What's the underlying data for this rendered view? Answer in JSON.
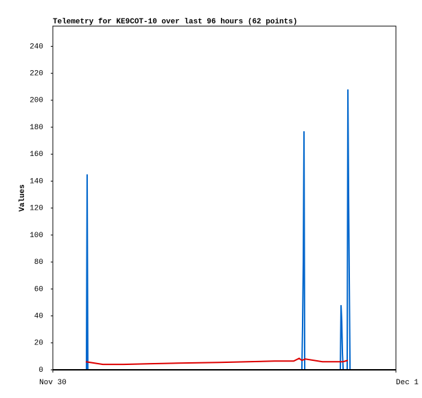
{
  "chart_data": {
    "type": "line",
    "title": "Telemetry for KE9COT-10 over last 96 hours (62 points)",
    "y_label": "Values",
    "xlim": [
      0,
      24
    ],
    "xticks": [
      {
        "value": 0,
        "label": "Nov 30"
      },
      {
        "value": 24,
        "label": "Dec 1"
      }
    ],
    "ylim": [
      0,
      255
    ],
    "yticks": [
      0,
      20,
      40,
      60,
      80,
      100,
      120,
      140,
      160,
      180,
      200,
      220,
      240
    ],
    "grid": false,
    "series": [
      {
        "color": "#0066cc",
        "x": [
          2.35,
          2.4,
          2.45,
          17.42,
          17.47,
          17.52,
          17.57,
          17.62,
          20.11,
          20.16,
          20.21,
          20.26,
          20.31,
          20.59,
          20.64,
          20.69,
          20.74,
          20.79
        ],
        "values": [
          0,
          145,
          0,
          0,
          32,
          80,
          177,
          0,
          0,
          48,
          36,
          12,
          0,
          0,
          208,
          128,
          64,
          0
        ]
      },
      {
        "color": "#dd0000",
        "x": [
          2.3,
          3.5,
          4.94,
          6.86,
          8.78,
          11.66,
          15.5,
          16.85,
          17.23,
          17.42,
          17.66,
          18.86,
          20.3,
          20.64
        ],
        "values": [
          6,
          4,
          4,
          4.5,
          5,
          5.5,
          6.5,
          6.5,
          8.5,
          7,
          8,
          6,
          6,
          7
        ]
      }
    ]
  }
}
